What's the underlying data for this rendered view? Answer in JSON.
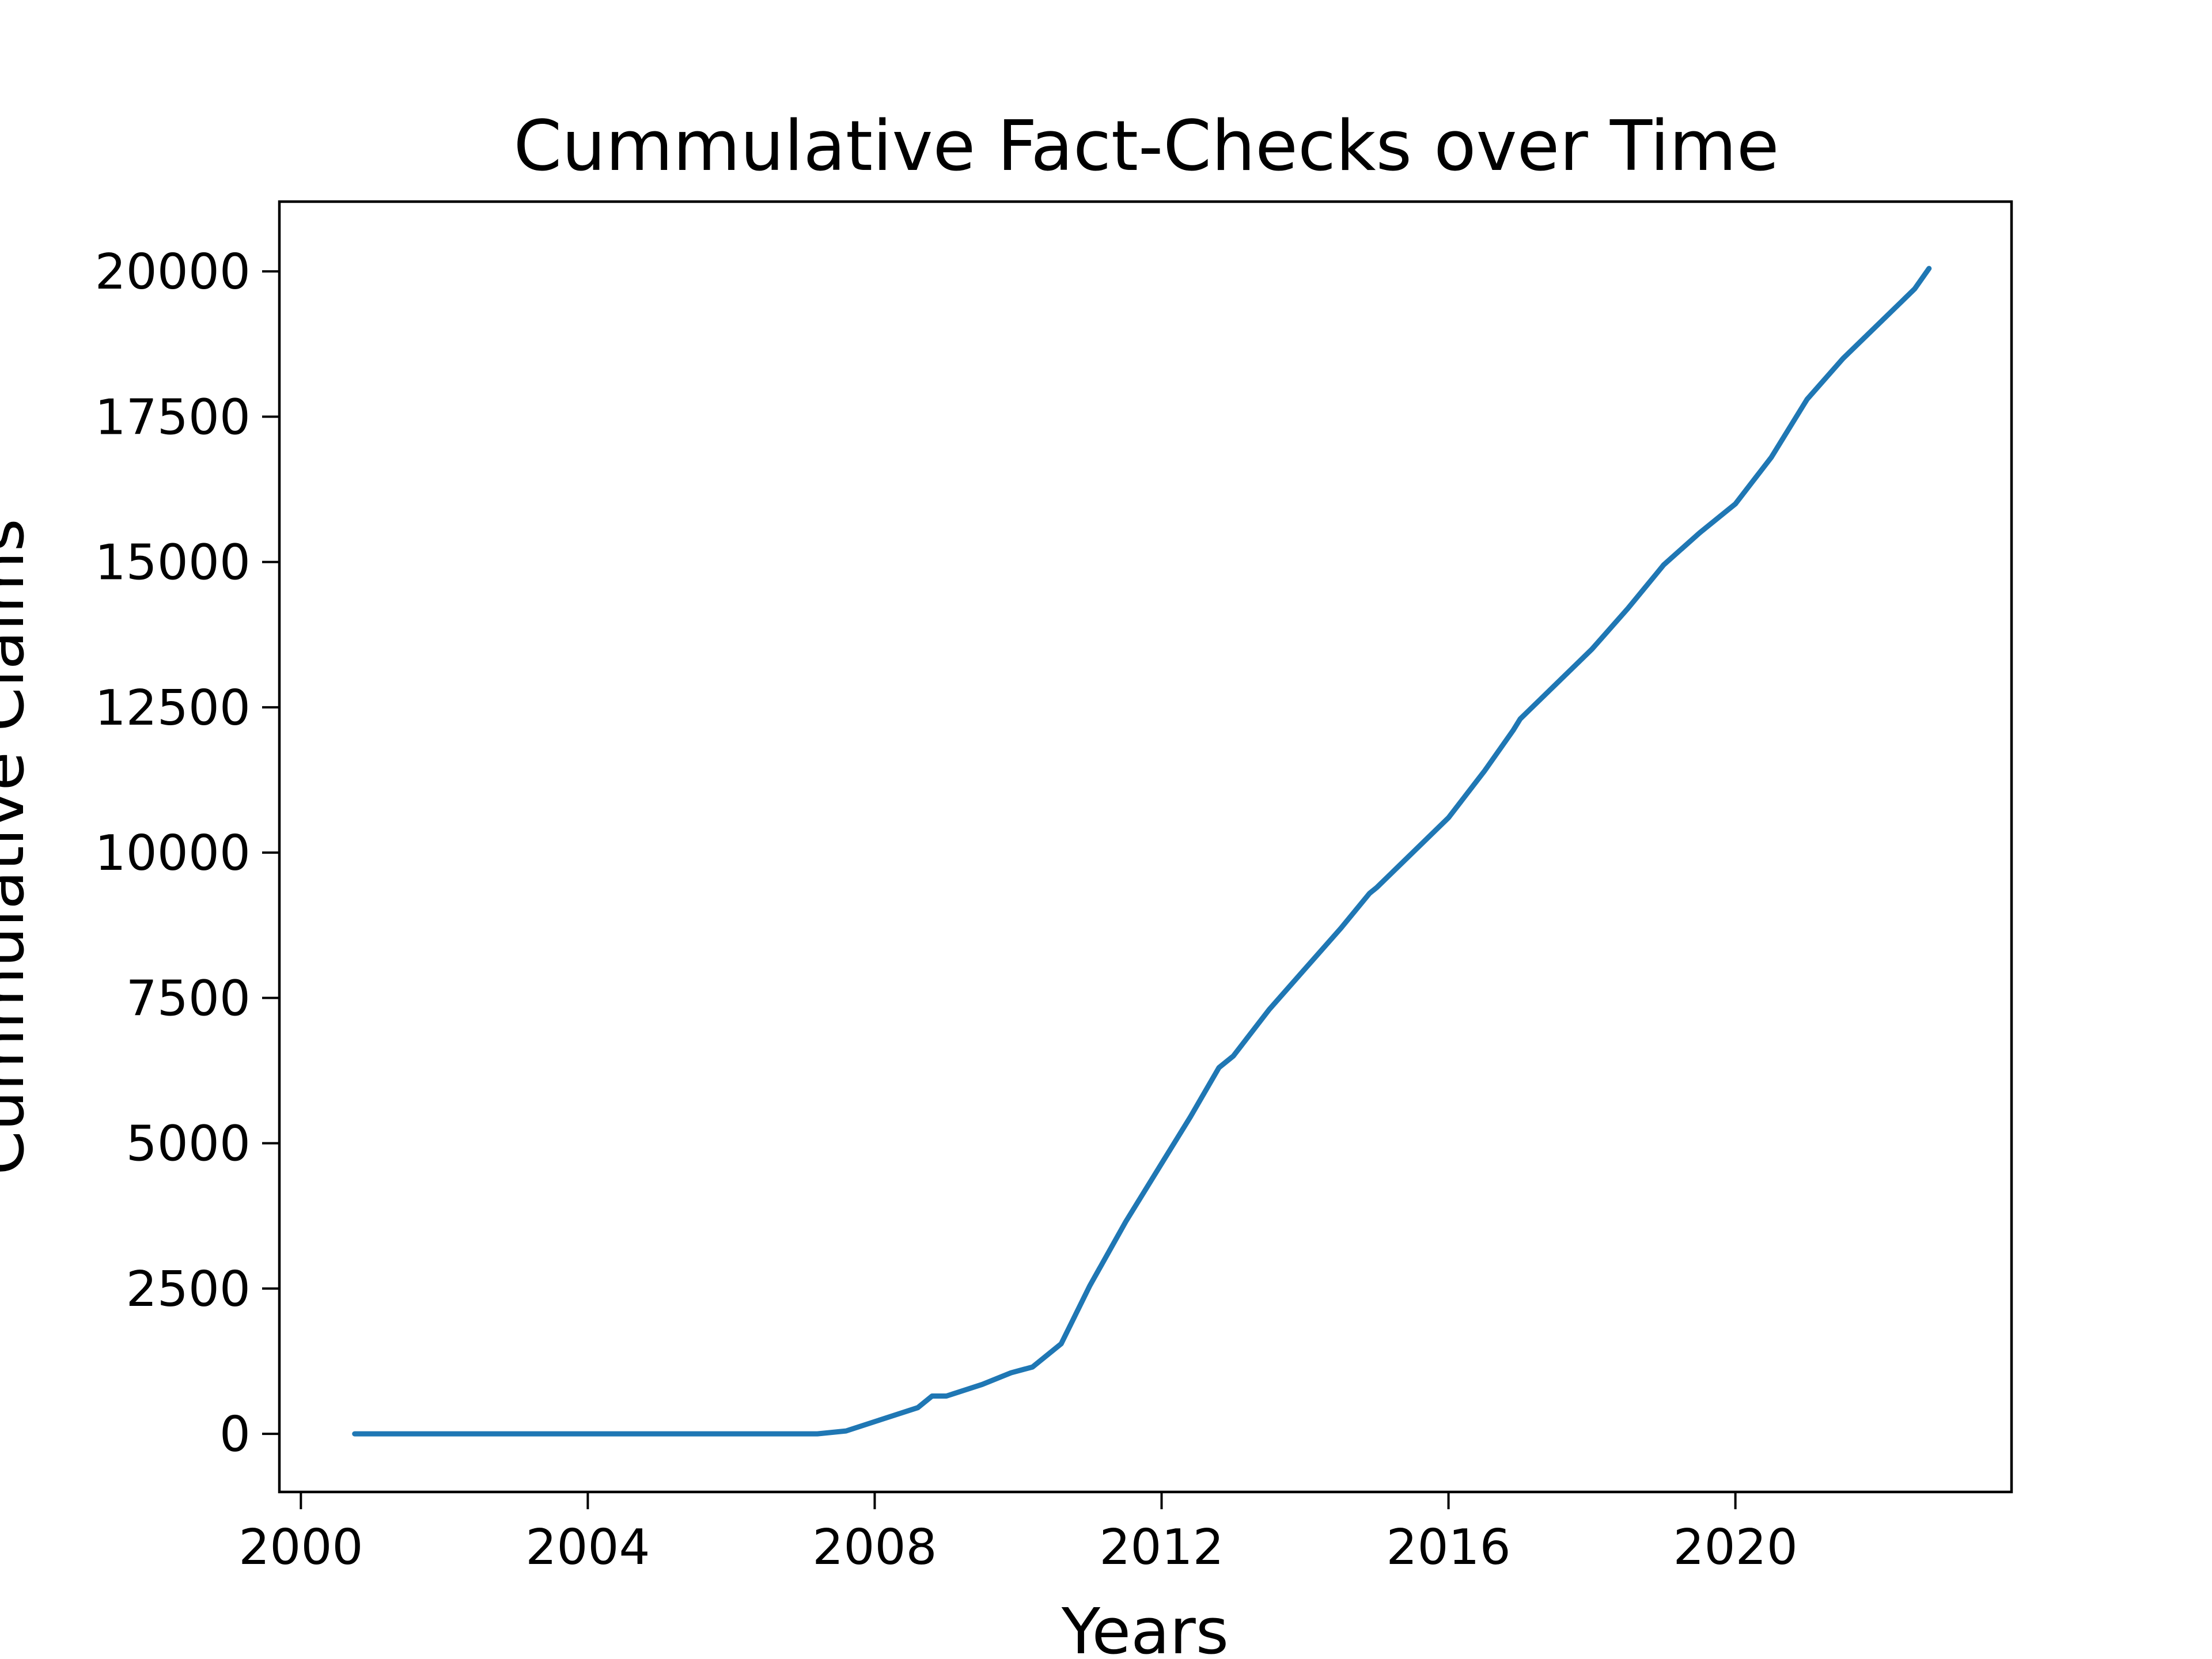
{
  "chart_data": {
    "type": "line",
    "title": "Cummulative Fact-Checks over Time",
    "xlabel": "Years",
    "ylabel": "Cummulative Claims",
    "x_ticks": [
      "2000",
      "2004",
      "2008",
      "2012",
      "2016",
      "2020"
    ],
    "y_ticks": [
      "0",
      "2500",
      "5000",
      "7500",
      "10000",
      "12500",
      "15000",
      "17500",
      "20000"
    ],
    "xlim": [
      1999.7,
      2023.85
    ],
    "ylim": [
      -1000,
      21200
    ],
    "grid": false,
    "colors": {
      "line": "#1f77b4",
      "axes": "#000000",
      "background": "#ffffff"
    },
    "series": [
      {
        "x": [
          2000.75,
          2003.0,
          2005.0,
          2007.2,
          2007.6,
          2008.1,
          2008.6,
          2008.8,
          2009.0,
          2009.5,
          2009.9,
          2010.2,
          2010.6,
          2010.8,
          2011.0,
          2011.5,
          2012.0,
          2012.4,
          2012.8,
          2013.0,
          2013.5,
          2014.0,
          2014.5,
          2014.9,
          2015.0,
          2015.5,
          2016.0,
          2016.5,
          2016.9,
          2017.0,
          2017.5,
          2018.0,
          2018.5,
          2018.9,
          2019.0,
          2019.5,
          2020.0,
          2020.5,
          2020.9,
          2021.0,
          2021.5,
          2022.0,
          2022.5,
          2022.7
        ],
        "y": [
          0,
          0,
          0,
          0,
          50,
          250,
          450,
          650,
          650,
          850,
          1050,
          1150,
          1550,
          2050,
          2550,
          3650,
          4650,
          5450,
          6300,
          6500,
          7300,
          8000,
          8700,
          9300,
          9400,
          10000,
          10600,
          11400,
          12100,
          12300,
          12900,
          13500,
          14200,
          14800,
          14950,
          15500,
          16000,
          16800,
          17600,
          17800,
          18500,
          19100,
          19700,
          20050
        ]
      }
    ]
  }
}
